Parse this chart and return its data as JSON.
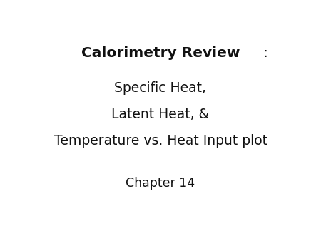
{
  "background_color": "#ffffff",
  "title_bold": "Calorimetry Review",
  "title_colon": ":",
  "line2": "Specific Heat,",
  "line3": "Latent Heat, &",
  "line4": "Temperature vs. Heat Input plot",
  "subtitle": "Chapter 14",
  "title_fontsize": 14.5,
  "body_fontsize": 13.5,
  "subtitle_fontsize": 12.5,
  "text_color": "#111111",
  "fig_width": 4.5,
  "fig_height": 3.38,
  "dpi": 100
}
